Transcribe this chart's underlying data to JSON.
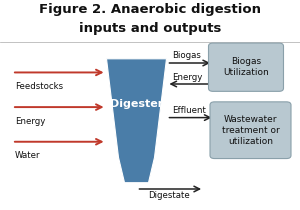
{
  "title_line1": "Figure 2. Anaerobic digestion",
  "title_line2": "inputs and outputs",
  "title_fontsize": 9.5,
  "bg_color": "#ffffff",
  "digester_color": "#4a7da8",
  "digester_text": "Digester",
  "digester_text_color": "#ffffff",
  "box_fill": "#b8c8d0",
  "box_edge": "#8aa0aa",
  "input_arrow_color": "#c0392b",
  "out_arrow_color": "#222222",
  "biogas_box_text": "Biogas\nUtilization",
  "wastewater_box_text": "Wastewater\ntreatment or\nutilization",
  "label_biogas": "Biogas",
  "label_energy": "Energy",
  "label_effluent": "Effluent",
  "label_digestate": "Digestate",
  "inputs": [
    "Feedstocks",
    "Energy",
    "Water"
  ],
  "font_size_labels": 6.2,
  "font_size_box": 6.5,
  "font_size_digester": 8.0
}
